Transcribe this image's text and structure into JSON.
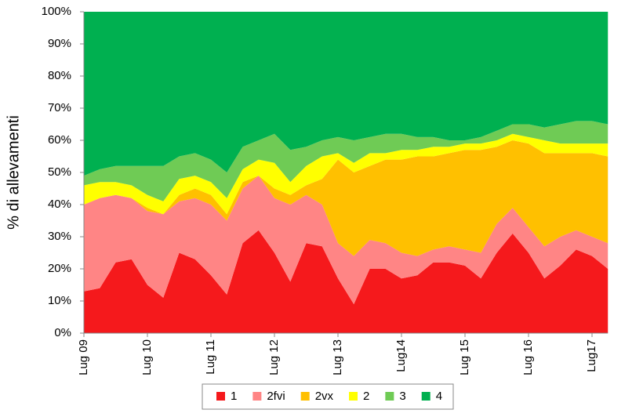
{
  "chart_data": {
    "type": "stacked-area",
    "y_label": "% di allevamenti",
    "categories": [
      "Lug 09",
      null,
      null,
      null,
      "Lug 10",
      null,
      null,
      null,
      "Lug 11",
      null,
      null,
      null,
      "Lug 12",
      null,
      null,
      null,
      "Lug 13",
      null,
      null,
      null,
      "Lug14",
      null,
      null,
      null,
      "Lug 15",
      null,
      null,
      null,
      "Lug 16",
      null,
      null,
      null,
      "Lug17",
      null
    ],
    "ylim": [
      0,
      100
    ],
    "yticks": [
      {
        "value": 0,
        "label": "0%"
      },
      {
        "value": 10,
        "label": "10%"
      },
      {
        "value": 20,
        "label": "20%"
      },
      {
        "value": 30,
        "label": "30%"
      },
      {
        "value": 40,
        "label": "40%"
      },
      {
        "value": 50,
        "label": "50%"
      },
      {
        "value": 60,
        "label": "60%"
      },
      {
        "value": 70,
        "label": "70%"
      },
      {
        "value": 80,
        "label": "80%"
      },
      {
        "value": 90,
        "label": "90%"
      },
      {
        "value": 100,
        "label": "100%"
      }
    ],
    "legend": "bottom",
    "series": [
      {
        "name": "1",
        "color": "#f5191c",
        "values": [
          13,
          14,
          22,
          23,
          15,
          11,
          25,
          23,
          18,
          12,
          28,
          32,
          25,
          16,
          28,
          27,
          17,
          9,
          20,
          20,
          17,
          18,
          22,
          22,
          21,
          17,
          25,
          31,
          25,
          17,
          21,
          26,
          24,
          20
        ]
      },
      {
        "name": "2fvi",
        "color": "#ff8585",
        "values": [
          27,
          28,
          21,
          19,
          23,
          26,
          16,
          19,
          22,
          23,
          17,
          17,
          17,
          24,
          15,
          13,
          11,
          15,
          9,
          8,
          8,
          6,
          4,
          5,
          5,
          8,
          9,
          8,
          8,
          10,
          9,
          6,
          6,
          8
        ]
      },
      {
        "name": "2vx",
        "color": "#ffc000",
        "values": [
          0,
          0,
          0,
          0,
          1,
          0,
          2,
          3,
          3,
          2,
          2,
          0,
          3,
          3,
          3,
          8,
          26,
          26,
          23,
          26,
          29,
          31,
          29,
          29,
          31,
          32,
          24,
          21,
          26,
          29,
          26,
          24,
          26,
          27
        ]
      },
      {
        "name": "2",
        "color": "#ffff00",
        "values": [
          6,
          5,
          4,
          4,
          4,
          4,
          5,
          4,
          4,
          5,
          4,
          5,
          8,
          4,
          6,
          7,
          2,
          3,
          4,
          2,
          3,
          2,
          3,
          2,
          2,
          2,
          2,
          2,
          2,
          4,
          3,
          3,
          3,
          4
        ]
      },
      {
        "name": "3",
        "color": "#6fcb55",
        "values": [
          3,
          4,
          5,
          6,
          9,
          11,
          7,
          7,
          7,
          8,
          7,
          6,
          9,
          10,
          6,
          5,
          5,
          7,
          5,
          6,
          5,
          4,
          3,
          2,
          1,
          2,
          3,
          3,
          4,
          4,
          6,
          7,
          7,
          6
        ]
      },
      {
        "name": "4",
        "color": "#00b050",
        "values": [
          51,
          49,
          48,
          48,
          48,
          48,
          45,
          44,
          46,
          50,
          42,
          40,
          38,
          43,
          42,
          40,
          39,
          40,
          39,
          38,
          38,
          39,
          39,
          40,
          40,
          39,
          37,
          35,
          35,
          36,
          35,
          34,
          34,
          35
        ]
      }
    ]
  }
}
